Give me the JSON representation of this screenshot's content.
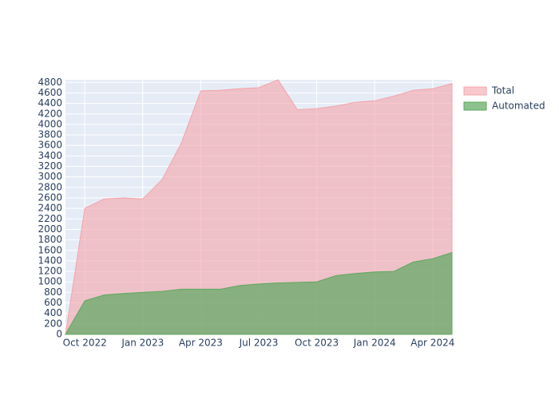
{
  "chart_data": {
    "type": "area",
    "x": [
      "2022-09",
      "2022-10",
      "2022-11",
      "2022-12",
      "2023-01",
      "2023-02",
      "2023-03",
      "2023-04",
      "2023-05",
      "2023-06",
      "2023-07",
      "2023-08",
      "2023-09",
      "2023-10",
      "2023-11",
      "2023-12",
      "2024-01",
      "2024-02",
      "2024-03",
      "2024-04",
      "2024-05"
    ],
    "series": [
      {
        "name": "Total",
        "color": "#f4a4aa",
        "values": [
          0,
          2400,
          2580,
          2600,
          2580,
          2950,
          3650,
          4640,
          4650,
          4680,
          4700,
          4850,
          4280,
          4300,
          4350,
          4420,
          4450,
          4540,
          4650,
          4680,
          4780
        ]
      },
      {
        "name": "Automated",
        "color": "#5da85f",
        "values": [
          0,
          640,
          750,
          780,
          800,
          820,
          860,
          860,
          860,
          930,
          960,
          980,
          990,
          1000,
          1120,
          1160,
          1190,
          1200,
          1380,
          1440,
          1560
        ]
      }
    ],
    "xlim": [
      "2022-09",
      "2024-05"
    ],
    "xticks": [
      {
        "value": "2022-10",
        "label": "Oct 2022"
      },
      {
        "value": "2023-01",
        "label": "Jan 2023"
      },
      {
        "value": "2023-04",
        "label": "Apr 2023"
      },
      {
        "value": "2023-07",
        "label": "Jul 2023"
      },
      {
        "value": "2023-10",
        "label": "Oct 2023"
      },
      {
        "value": "2024-01",
        "label": "Jan 2024"
      },
      {
        "value": "2024-04",
        "label": "Apr 2024"
      }
    ],
    "ylim": [
      0,
      4850
    ],
    "yticks": [
      0,
      200,
      400,
      600,
      800,
      1000,
      1200,
      1400,
      1600,
      1800,
      2000,
      2200,
      2400,
      2600,
      2800,
      3000,
      3200,
      3400,
      3600,
      3800,
      4000,
      4200,
      4400,
      4600,
      4800
    ],
    "grid": true
  }
}
